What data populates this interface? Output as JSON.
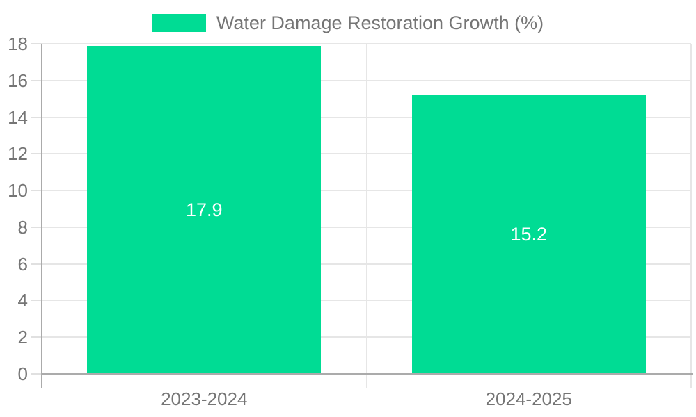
{
  "legend": {
    "label": "Water Damage Restoration Growth (%)"
  },
  "chart_data": {
    "type": "bar",
    "title": "",
    "xlabel": "",
    "ylabel": "",
    "categories": [
      "2023-2024",
      "2024-2025"
    ],
    "series": [
      {
        "name": "Water Damage Restoration Growth (%)",
        "values": [
          17.9,
          15.2
        ]
      }
    ],
    "bar_value_labels": [
      "17.9",
      "15.2"
    ],
    "ylim": [
      0,
      18
    ],
    "yticks": [
      0,
      2,
      4,
      6,
      8,
      10,
      12,
      14,
      16,
      18
    ],
    "grid": true,
    "legend_position": "top-center",
    "colors": {
      "bar": "#00DC94",
      "value_label": "#FFFFFF",
      "axis_text": "#757575",
      "gridline": "#E6E6E6",
      "axis_line": "#ABABAB",
      "background": "#FFFFFF"
    }
  }
}
